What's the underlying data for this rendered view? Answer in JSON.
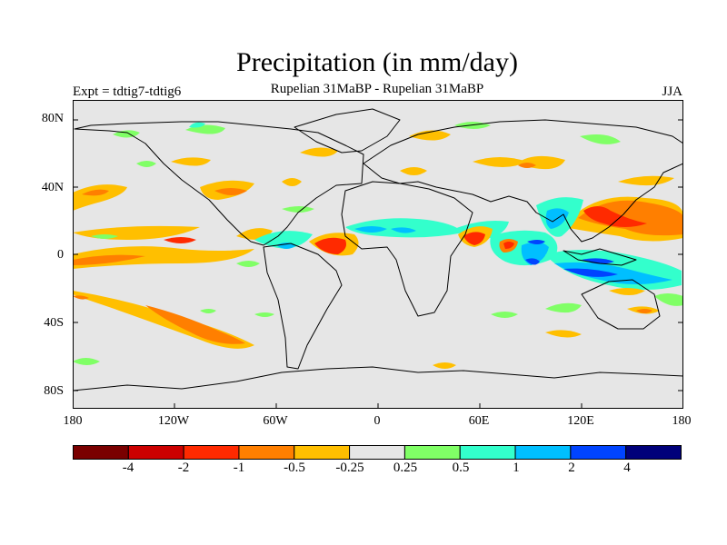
{
  "title": "Precipitation (in mm/day)",
  "subtitle": "Rupelian  31MaBP - Rupelian  31MaBP",
  "experiment": "Expt = tdtig7-tdtig6",
  "season": "JJA",
  "lat_labels": [
    "80N",
    "40N",
    "0",
    "40S",
    "80S"
  ],
  "lon_labels": [
    "180",
    "120W",
    "60W",
    "0",
    "60E",
    "120E",
    "180"
  ],
  "colorbar": {
    "colors": [
      "#7a0000",
      "#cc0000",
      "#ff2a00",
      "#ff7f00",
      "#ffbf00",
      "#e6e6e6",
      "#80ff66",
      "#33ffcc",
      "#00bfff",
      "#0044ff",
      "#00007a"
    ],
    "labels": [
      "-4",
      "-2",
      "-1",
      "-0.5",
      "-0.25",
      "0.25",
      "0.5",
      "1",
      "2",
      "4"
    ]
  },
  "map": {
    "type": "filled contour map (difference field)",
    "background_color": "#e6e6e6",
    "lat_range": [
      -90,
      90
    ],
    "lon_range": [
      -180,
      180
    ]
  }
}
